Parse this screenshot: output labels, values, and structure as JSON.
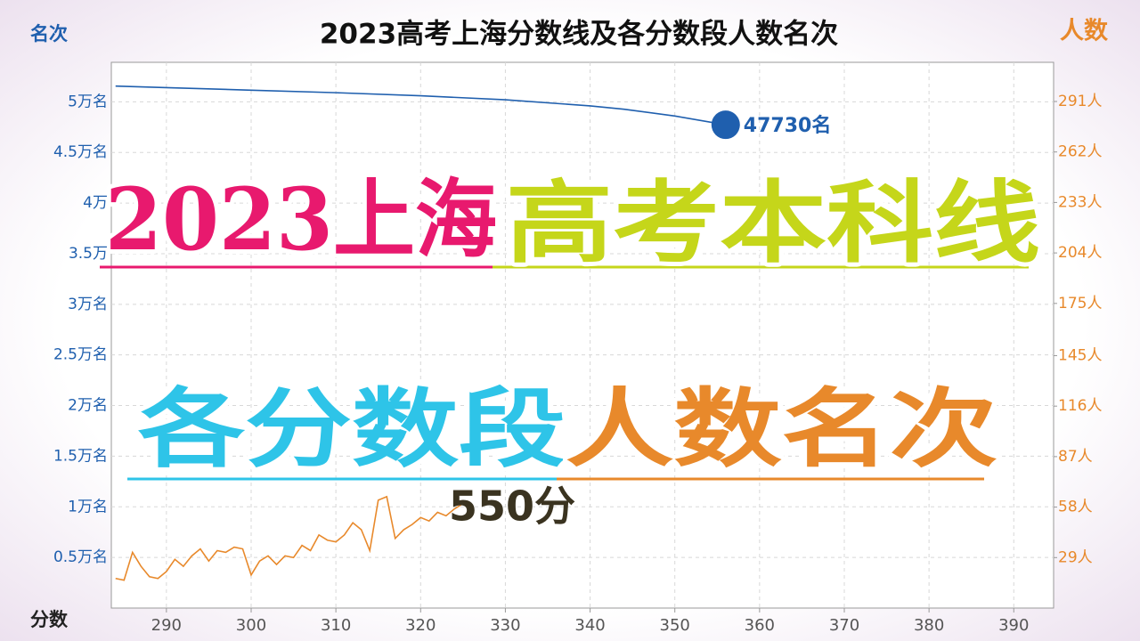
{
  "chart_data": {
    "type": "line",
    "title": "2023高考上海分数线及各分数段人数名次",
    "xlabel": "分数",
    "ylabel": "名次",
    "y2label": "人数",
    "xlim": [
      283.5,
      394.7
    ],
    "xticks": [
      290,
      300,
      310,
      320,
      330,
      340,
      350,
      360,
      370,
      380,
      390
    ],
    "ylim": [
      0,
      53900
    ],
    "yticks": [
      {
        "value": 5000,
        "label": "0.5万名"
      },
      {
        "value": 10000,
        "label": "1万名"
      },
      {
        "value": 15000,
        "label": "1.5万名"
      },
      {
        "value": 20000,
        "label": "2万名"
      },
      {
        "value": 25000,
        "label": "2.5万名"
      },
      {
        "value": 30000,
        "label": "3万名"
      },
      {
        "value": 35000,
        "label": "3.5万"
      },
      {
        "value": 40000,
        "label": "4万"
      },
      {
        "value": 45000,
        "label": "4.5万名"
      },
      {
        "value": 50000,
        "label": "5万名"
      }
    ],
    "y2lim": [
      0,
      313.5
    ],
    "y2ticks": [
      {
        "value": 29,
        "label": "29人"
      },
      {
        "value": 58,
        "label": "58人"
      },
      {
        "value": 87,
        "label": "87人"
      },
      {
        "value": 116,
        "label": "116人"
      },
      {
        "value": 145,
        "label": "145人"
      },
      {
        "value": 175,
        "label": "175人"
      },
      {
        "value": 204,
        "label": "204人"
      },
      {
        "value": 233,
        "label": "233人"
      },
      {
        "value": 262,
        "label": "262人"
      },
      {
        "value": 291,
        "label": "291人"
      }
    ],
    "grid": true,
    "annotation": "550分",
    "series": [
      {
        "name": "名次",
        "color": "#1f5fae",
        "axis": "y",
        "x": [
          284,
          290,
          300,
          310,
          320,
          330,
          340,
          344,
          350,
          356
        ],
        "values": [
          51550,
          51400,
          51150,
          50900,
          50600,
          50200,
          49600,
          49270,
          48600,
          47730
        ],
        "value_labels": [
          null,
          null,
          null,
          null,
          null,
          null,
          null,
          null,
          null,
          "47730名"
        ]
      },
      {
        "name": "人数",
        "color": "#e8892b",
        "axis": "y2",
        "x": [
          284,
          285,
          286,
          287,
          288,
          289,
          290,
          291,
          292,
          293,
          294,
          295,
          296,
          297,
          298,
          299,
          300,
          301,
          302,
          303,
          304,
          305,
          306,
          307,
          308,
          309,
          310,
          311,
          312,
          313,
          314,
          315,
          316,
          317,
          318,
          319,
          320,
          321,
          322,
          323,
          324,
          325
        ],
        "values": [
          17,
          16,
          32,
          24,
          18,
          17,
          21,
          28,
          24,
          30,
          34,
          27,
          33,
          32,
          35,
          34,
          19,
          27,
          30,
          25,
          30,
          29,
          36,
          33,
          42,
          39,
          38,
          42,
          49,
          45,
          33,
          62,
          64,
          40,
          45,
          48,
          52,
          50,
          55,
          53,
          57,
          60
        ]
      }
    ]
  },
  "overlay": {
    "line1": [
      "2023上海",
      "高考本科线"
    ],
    "line2": [
      "各分数段",
      "人数名次"
    ]
  }
}
